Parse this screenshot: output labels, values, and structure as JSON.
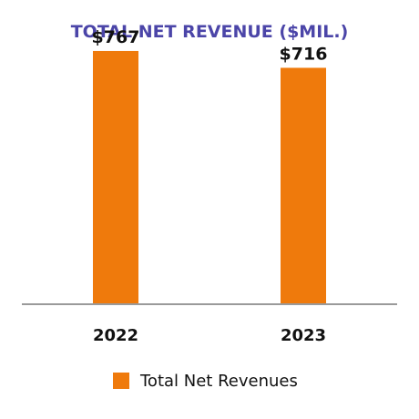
{
  "chart_data": {
    "type": "bar",
    "title": "TOTAL NET REVENUE ($MIL.)",
    "categories": [
      "2022",
      "2023"
    ],
    "series": [
      {
        "name": "Total Net Revenues",
        "values": [
          767,
          716
        ],
        "labels": [
          "$767",
          "$716"
        ]
      }
    ],
    "ylim": [
      0,
      800
    ],
    "grid": false,
    "legend_placement": "bottom-center",
    "colors": {
      "title": "#4b45a8",
      "bar": "#ef7a0c",
      "axis": "#9a9a9a",
      "text": "#111111"
    }
  }
}
